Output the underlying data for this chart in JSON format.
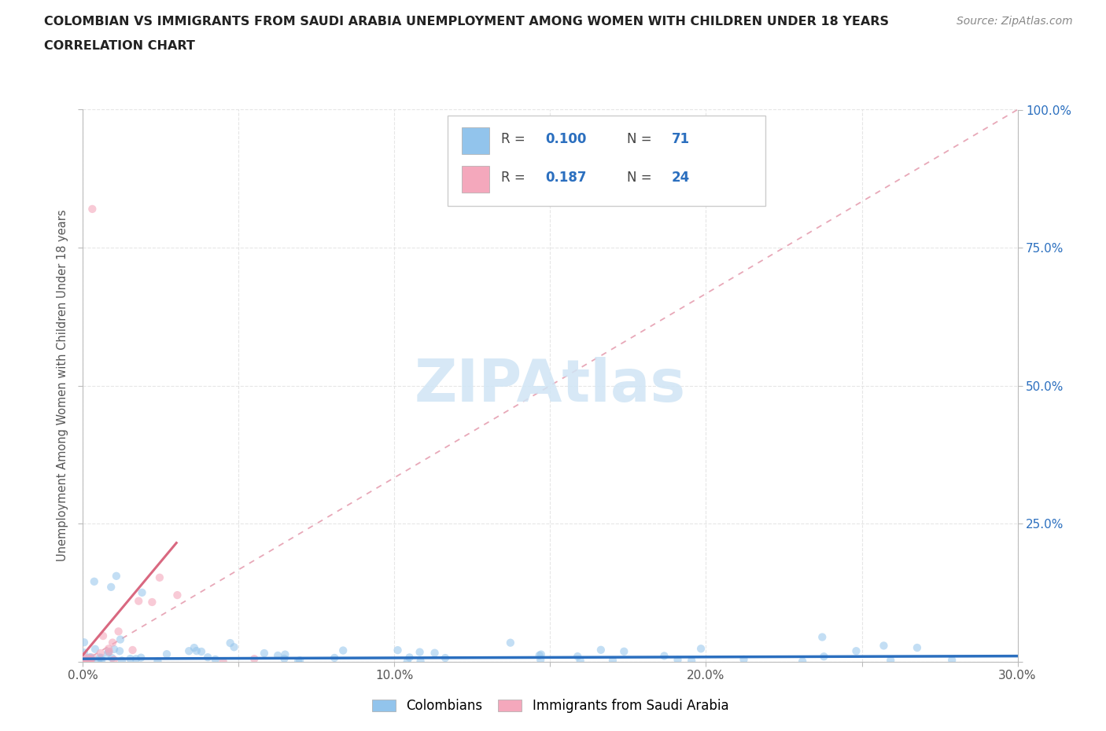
{
  "title_line1": "COLOMBIAN VS IMMIGRANTS FROM SAUDI ARABIA UNEMPLOYMENT AMONG WOMEN WITH CHILDREN UNDER 18 YEARS",
  "title_line2": "CORRELATION CHART",
  "source_text": "Source: ZipAtlas.com",
  "ylabel": "Unemployment Among Women with Children Under 18 years",
  "xlim": [
    0.0,
    0.3
  ],
  "ylim": [
    0.0,
    1.0
  ],
  "xticks": [
    0.0,
    0.05,
    0.1,
    0.15,
    0.2,
    0.25,
    0.3
  ],
  "xtick_labels": [
    "0.0%",
    "",
    "10.0%",
    "",
    "20.0%",
    "",
    "30.0%"
  ],
  "yticks": [
    0.0,
    0.25,
    0.5,
    0.75,
    1.0
  ],
  "ytick_labels_right": [
    "",
    "25.0%",
    "50.0%",
    "75.0%",
    "100.0%"
  ],
  "color_blue": "#92C4EC",
  "color_pink": "#F4A8BC",
  "color_blue_line": "#2B6FBF",
  "color_pink_line": "#D96880",
  "color_diag": "#E8A8B8",
  "color_grid": "#E0E0E0",
  "watermark_color": "#D0E5F5",
  "r_val_blue": "0.100",
  "n_val_blue": "71",
  "r_val_pink": "0.187",
  "n_val_pink": "24",
  "legend_text_color": "#2B6FBF"
}
